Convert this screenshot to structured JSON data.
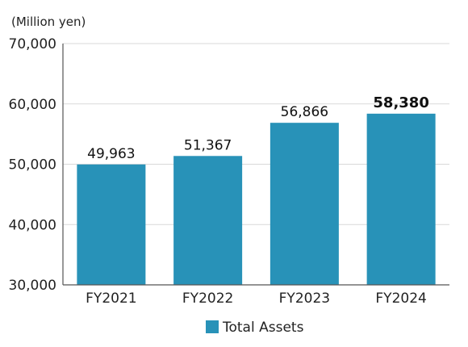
{
  "chart_data": {
    "type": "bar",
    "unit_label": "(Million yen)",
    "categories": [
      "FY2021",
      "FY2022",
      "FY2023",
      "FY2024"
    ],
    "series": [
      {
        "name": "Total Assets",
        "values": [
          49963,
          51367,
          56866,
          58380
        ],
        "value_labels": [
          "49,963",
          "51,367",
          "56,866",
          "58,380"
        ],
        "color": "#2892b8"
      }
    ],
    "emphasized_category": "FY2024",
    "ylim": [
      30000,
      70000
    ],
    "yticks": [
      30000,
      40000,
      50000,
      60000,
      70000
    ],
    "ytick_labels": [
      "30,000",
      "40,000",
      "50,000",
      "60,000",
      "70,000"
    ],
    "grid": true,
    "grid_color": "#d9d9d9",
    "axis_color": "#555555",
    "legend_position": "bottom-center"
  }
}
